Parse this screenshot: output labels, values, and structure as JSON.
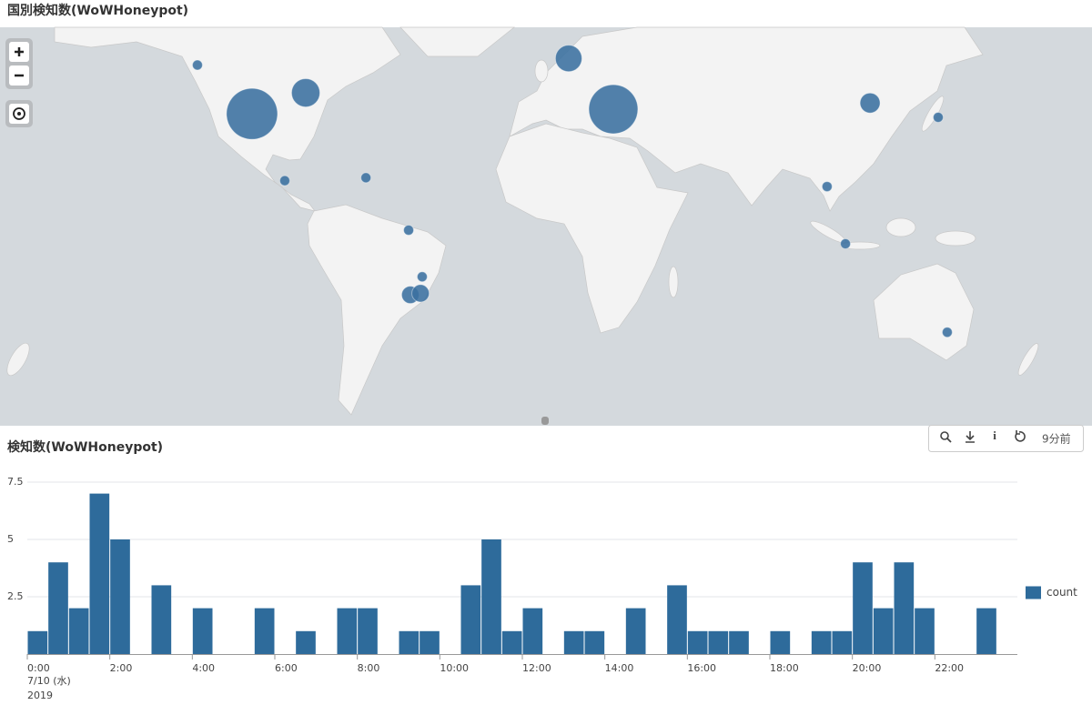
{
  "chart_data": [
    {
      "type": "bubble-map",
      "title": "国別検知数(WoWHoneypot)",
      "color": "#3a6f9f",
      "lon": [
        -122,
        -102.7,
        -83.7,
        -91.1,
        -62.4,
        -47.3,
        -42.5,
        -46.7,
        -43.1,
        9.3,
        25.1,
        115.9,
        140,
        100.7,
        107.2,
        143.2
      ],
      "lat": [
        49.5,
        37,
        42.7,
        16,
        17,
        -1.3,
        -17.5,
        -23.5,
        -23,
        51,
        38.3,
        40,
        36,
        14,
        -6.1,
        -35
      ],
      "values": [
        1,
        26,
        8,
        1,
        1,
        1,
        1,
        3,
        3,
        7,
        24,
        4,
        1,
        1,
        1,
        1
      ]
    },
    {
      "type": "histogram",
      "title": "検知数(WoWHoneypot)",
      "series_name": "count",
      "color": "#2e6b9b",
      "bins": [
        0,
        0.5,
        1,
        1.5,
        2,
        2.5,
        3,
        3.5,
        4,
        4.5,
        5,
        5.5,
        6,
        6.5,
        7,
        7.5,
        8,
        8.5,
        9,
        9.5,
        10,
        10.5,
        11,
        11.5,
        12,
        12.5,
        13,
        13.5,
        14,
        14.5,
        15,
        15.5,
        16,
        16.5,
        17,
        17.5,
        18,
        18.5,
        19,
        19.5,
        20,
        20.5,
        21,
        21.5,
        22,
        22.5,
        23,
        23.5,
        24
      ],
      "values": [
        1,
        4,
        2,
        7,
        5,
        0,
        3,
        0,
        2,
        0,
        0,
        2,
        0,
        1,
        0,
        2,
        2,
        0,
        1,
        1,
        0,
        3,
        5,
        1,
        2,
        0,
        1,
        1,
        0,
        2,
        0,
        3,
        1,
        1,
        1,
        0,
        1,
        0,
        1,
        1,
        4,
        2,
        4,
        2,
        0,
        0,
        2,
        0
      ],
      "xlim": [
        0,
        24
      ],
      "xticks": [
        {
          "value": 0,
          "label": "0:00"
        },
        {
          "value": 2,
          "label": "2:00"
        },
        {
          "value": 4,
          "label": "4:00"
        },
        {
          "value": 6,
          "label": "6:00"
        },
        {
          "value": 8,
          "label": "8:00"
        },
        {
          "value": 10,
          "label": "10:00"
        },
        {
          "value": 12,
          "label": "12:00"
        },
        {
          "value": 14,
          "label": "14:00"
        },
        {
          "value": 16,
          "label": "16:00"
        },
        {
          "value": 18,
          "label": "18:00"
        },
        {
          "value": 20,
          "label": "20:00"
        },
        {
          "value": 22,
          "label": "22:00"
        }
      ],
      "x_date_label": "7/10 (水)",
      "x_year_label": "2019",
      "ylim": [
        0,
        7.5
      ],
      "yticks": [
        2.5,
        5,
        7.5
      ],
      "grid": true,
      "legend": "right"
    }
  ],
  "toolbar": {
    "updated": "9分前"
  }
}
